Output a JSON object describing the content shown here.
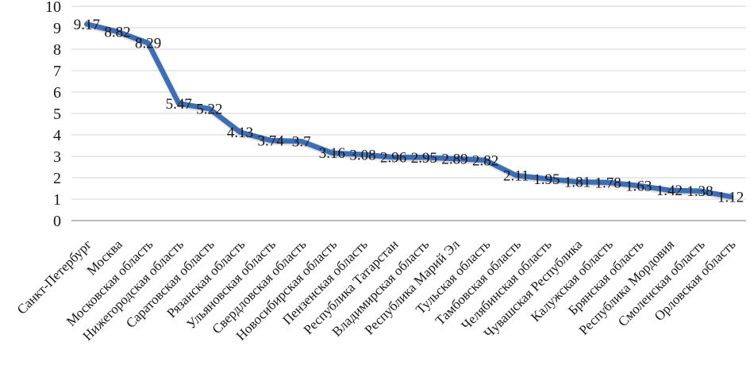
{
  "chart_data": {
    "type": "line",
    "title": "",
    "xlabel": "",
    "ylabel": "",
    "categories": [
      "Санкт-Петербург",
      "Москва",
      "Московская область",
      "Нижегородская область",
      "Саратовская область",
      "Рязанская область",
      "Ульяновская область",
      "Свердловская область",
      "Новосибирская область",
      "Пензенская область",
      "Республика Татарстан",
      "Владимирская область",
      "Республика Марий Эл",
      "Тульская область",
      "Тамбовская область",
      "Челябинская область",
      "Чувашская Республика",
      "Калужская область",
      "Брянская область",
      "Республика Мордовия",
      "Смоленская область",
      "Орловская область"
    ],
    "values": [
      9.17,
      8.82,
      8.29,
      5.47,
      5.22,
      4.13,
      3.74,
      3.7,
      3.16,
      3.08,
      2.96,
      2.95,
      2.89,
      2.82,
      2.11,
      1.95,
      1.81,
      1.78,
      1.63,
      1.42,
      1.38,
      1.12
    ],
    "value_labels": [
      "9.17",
      "8.82",
      "8.29",
      "5.47",
      "5.22",
      "4.13",
      "3.74",
      "3.7",
      "3.16",
      "3.08",
      "2.96",
      "2.95",
      "2.89",
      "2.82",
      "2.11",
      "1.95",
      "1.81",
      "1.78",
      "1.63",
      "1.42",
      "1.38",
      "1.12"
    ],
    "ylim": [
      0,
      10
    ],
    "yticks": [
      "0",
      "1",
      "2",
      "3",
      "4",
      "5",
      "6",
      "7",
      "8",
      "9",
      "10"
    ],
    "grid": true,
    "legend_position": "none",
    "data_label_position": "center",
    "x_label_rotation": -45,
    "colors": {
      "line": "#3E6DB4",
      "text": "#161616",
      "gridline": "#D4D4D4",
      "axis_line": "#A6A6A6",
      "background": "#FFFFFF"
    }
  }
}
